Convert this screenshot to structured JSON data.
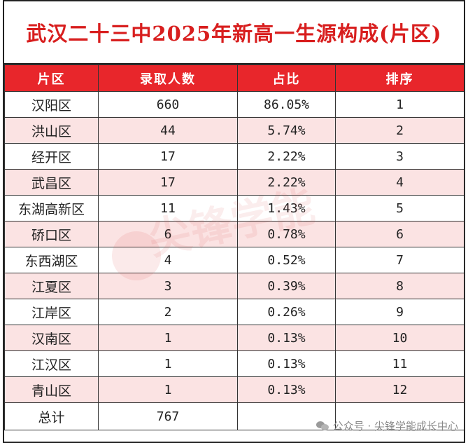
{
  "title": "武汉二十三中2025年新高一生源构成(片区)",
  "headers": [
    "片区",
    "录取人数",
    "占比",
    "排序"
  ],
  "rows": [
    {
      "area": "汉阳区",
      "count": "660",
      "pct": "86.05%",
      "rank": "1"
    },
    {
      "area": "洪山区",
      "count": "44",
      "pct": "5.74%",
      "rank": "2"
    },
    {
      "area": "经开区",
      "count": "17",
      "pct": "2.22%",
      "rank": "3"
    },
    {
      "area": "武昌区",
      "count": "17",
      "pct": "2.22%",
      "rank": "4"
    },
    {
      "area": "东湖高新区",
      "count": "11",
      "pct": "1.43%",
      "rank": "5"
    },
    {
      "area": "硚口区",
      "count": "6",
      "pct": "0.78%",
      "rank": "6"
    },
    {
      "area": "东西湖区",
      "count": "4",
      "pct": "0.52%",
      "rank": "7"
    },
    {
      "area": "江夏区",
      "count": "3",
      "pct": "0.39%",
      "rank": "8"
    },
    {
      "area": "江岸区",
      "count": "2",
      "pct": "0.26%",
      "rank": "9"
    },
    {
      "area": "汉南区",
      "count": "1",
      "pct": "0.13%",
      "rank": "10"
    },
    {
      "area": "江汉区",
      "count": "1",
      "pct": "0.13%",
      "rank": "11"
    },
    {
      "area": "青山区",
      "count": "1",
      "pct": "0.13%",
      "rank": "12"
    }
  ],
  "total": {
    "label": "总计",
    "count": "767"
  },
  "watermark": "尖锋学能",
  "footer": "公众号 · 尖锋学能成长中心",
  "colors": {
    "header_bg": "#e8262b",
    "title": "#d81e1e",
    "stripe": "#fbe3e3"
  }
}
